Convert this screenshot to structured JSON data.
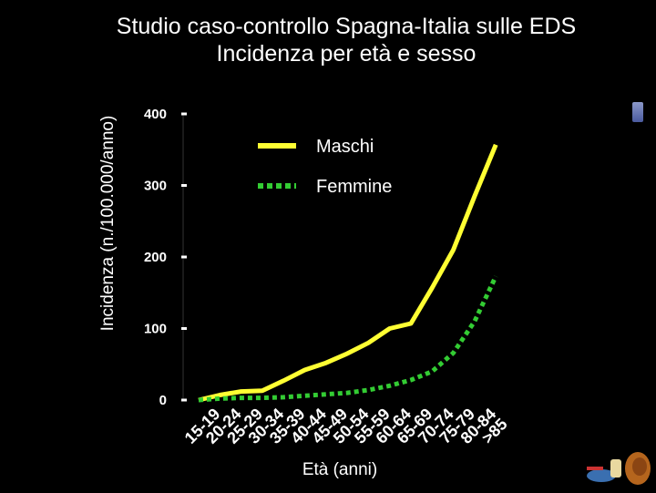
{
  "title_line1": "Studio caso-controllo Spagna-Italia sulle EDS",
  "title_line2": "Incidenza per età e sesso",
  "chart_data": {
    "type": "line",
    "title": "Studio caso-controllo Spagna-Italia sulle EDS Incidenza per età e sesso",
    "xlabel": "Età (anni)",
    "ylabel": "Incidenza (n./100.000/anno)",
    "categories": [
      "15-19",
      "20-24",
      "25-29",
      "30-34",
      "35-39",
      "40-44",
      "45-49",
      "50-54",
      "55-59",
      "60-64",
      "65-69",
      "70-74",
      "75-79",
      "80-84",
      ">85"
    ],
    "yticks": [
      0,
      100,
      200,
      300,
      400
    ],
    "ylim": [
      0,
      400
    ],
    "grid": false,
    "legend_position": "top-right",
    "series": [
      {
        "name": "Maschi",
        "color": "#ffff33",
        "style": "solid",
        "values": [
          0,
          7,
          12,
          13,
          27,
          42,
          52,
          65,
          80,
          100,
          107,
          157,
          210,
          285,
          357
        ]
      },
      {
        "name": "Femmine",
        "color": "#33cc33",
        "style": "dotted",
        "values": [
          0,
          2,
          3,
          3,
          4,
          6,
          8,
          10,
          14,
          20,
          28,
          40,
          66,
          110,
          173
        ]
      }
    ]
  }
}
